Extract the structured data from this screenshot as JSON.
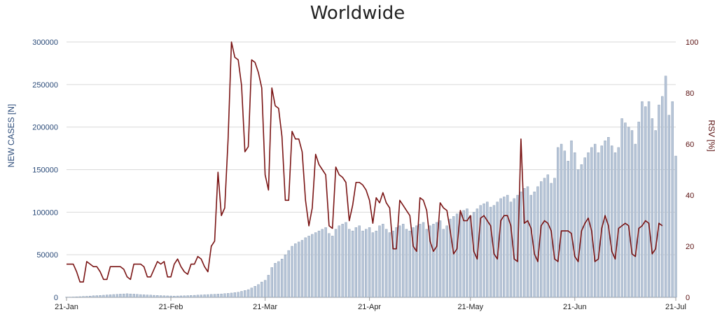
{
  "chart_data": {
    "type": "bar+line",
    "title": "Worldwide",
    "left_axis": {
      "label": "NEW CASES [N]",
      "range": [
        0,
        300000
      ],
      "ticks": [
        "0",
        "50000",
        "100000",
        "150000",
        "200000",
        "250000",
        "300000"
      ]
    },
    "right_axis": {
      "label": "RSV [%]",
      "range": [
        0,
        100
      ],
      "ticks": [
        "0",
        "20",
        "40",
        "60",
        "80",
        "100"
      ]
    },
    "x_axis": {
      "start": "21-Jan",
      "end": "21-Jul",
      "ticks": [
        "21-Jan",
        "21-Feb",
        "21-Mar",
        "21-Apr",
        "21-May",
        "21-Jun",
        "21-Jul"
      ],
      "tick_days": [
        0,
        31,
        59,
        90,
        120,
        151,
        181
      ]
    },
    "grid": "horizontal",
    "colors": {
      "bars": "#b8c6d8",
      "bar_edge": "#7f93ad",
      "line": "#7a1414",
      "grid": "#d9d9d9",
      "left_ticks": "#2a4a78",
      "right_ticks": "#5a1010"
    },
    "series": [
      {
        "name": "New cases",
        "axis": "left",
        "kind": "bar",
        "daily_values": [
          300,
          300,
          400,
          600,
          800,
          1000,
          1200,
          1500,
          1800,
          2000,
          2200,
          2500,
          2800,
          3000,
          3300,
          3500,
          3800,
          4000,
          4200,
          4000,
          3800,
          3500,
          3200,
          3000,
          2800,
          2600,
          2400,
          2200,
          2000,
          1800,
          1700,
          1600,
          1500,
          1600,
          1700,
          1800,
          2000,
          2200,
          2400,
          2600,
          2800,
          3000,
          3200,
          3400,
          3600,
          3800,
          4000,
          4300,
          4600,
          5000,
          5500,
          6000,
          7000,
          8000,
          9000,
          11000,
          13000,
          15000,
          18000,
          20000,
          26000,
          35000,
          40000,
          42000,
          45000,
          50000,
          55000,
          60000,
          63000,
          65000,
          67000,
          70000,
          72000,
          74000,
          76000,
          78000,
          80000,
          82000,
          75000,
          72000,
          80000,
          84000,
          86000,
          88000,
          80000,
          78000,
          82000,
          84000,
          78000,
          80000,
          82000,
          76000,
          78000,
          84000,
          86000,
          80000,
          76000,
          78000,
          82000,
          84000,
          86000,
          80000,
          78000,
          82000,
          84000,
          86000,
          88000,
          80000,
          84000,
          86000,
          88000,
          90000,
          80000,
          84000,
          92000,
          95000,
          98000,
          100000,
          102000,
          104000,
          96000,
          100000,
          104000,
          108000,
          110000,
          112000,
          106000,
          108000,
          112000,
          116000,
          118000,
          120000,
          112000,
          116000,
          120000,
          124000,
          128000,
          130000,
          120000,
          124000,
          130000,
          136000,
          140000,
          144000,
          134000,
          140000,
          176000,
          180000,
          172000,
          160000,
          184000,
          170000,
          150000,
          156000,
          164000,
          170000,
          176000,
          180000,
          170000,
          178000,
          184000,
          188000,
          178000,
          170000,
          176000,
          210000,
          205000,
          200000,
          196000,
          180000,
          206000,
          230000,
          224000,
          230000,
          210000,
          196000,
          226000,
          236000,
          260000,
          214000,
          230000,
          166000
        ],
        "description": "daily bar values in cases, days 0..181 from 21-Jan"
      },
      {
        "name": "RSV",
        "axis": "right",
        "kind": "line",
        "daily_values": [
          13,
          13,
          13,
          10,
          6,
          6,
          14,
          13,
          12,
          12,
          10,
          7,
          7,
          12,
          12,
          12,
          12,
          11,
          8,
          7,
          13,
          13,
          13,
          12,
          8,
          8,
          11,
          14,
          13,
          14,
          8,
          8,
          13,
          15,
          12,
          10,
          9,
          13,
          13,
          16,
          15,
          12,
          10,
          20,
          22,
          49,
          32,
          35,
          62,
          100,
          94,
          93,
          83,
          57,
          59,
          93,
          92,
          88,
          82,
          48,
          42,
          82,
          75,
          74,
          63,
          38,
          38,
          65,
          62,
          62,
          57,
          38,
          28,
          35,
          56,
          52,
          50,
          48,
          28,
          27,
          51,
          48,
          47,
          45,
          30,
          36,
          45,
          45,
          44,
          42,
          38,
          29,
          39,
          37,
          41,
          37,
          35,
          19,
          19,
          38,
          36,
          34,
          32,
          20,
          18,
          39,
          38,
          34,
          22,
          18,
          20,
          37,
          35,
          34,
          26,
          17,
          19,
          34,
          30,
          30,
          32,
          18,
          15,
          31,
          32,
          30,
          28,
          17,
          15,
          30,
          32,
          32,
          28,
          15,
          14,
          62,
          29,
          30,
          27,
          17,
          14,
          28,
          30,
          29,
          26,
          15,
          14,
          26,
          26,
          26,
          25,
          16,
          14,
          26,
          29,
          31,
          26,
          14,
          15,
          27,
          32,
          28,
          18,
          15,
          27,
          28,
          29,
          28,
          17,
          16,
          27,
          28,
          30,
          29,
          17,
          19,
          29,
          28
        ]
      }
    ]
  }
}
